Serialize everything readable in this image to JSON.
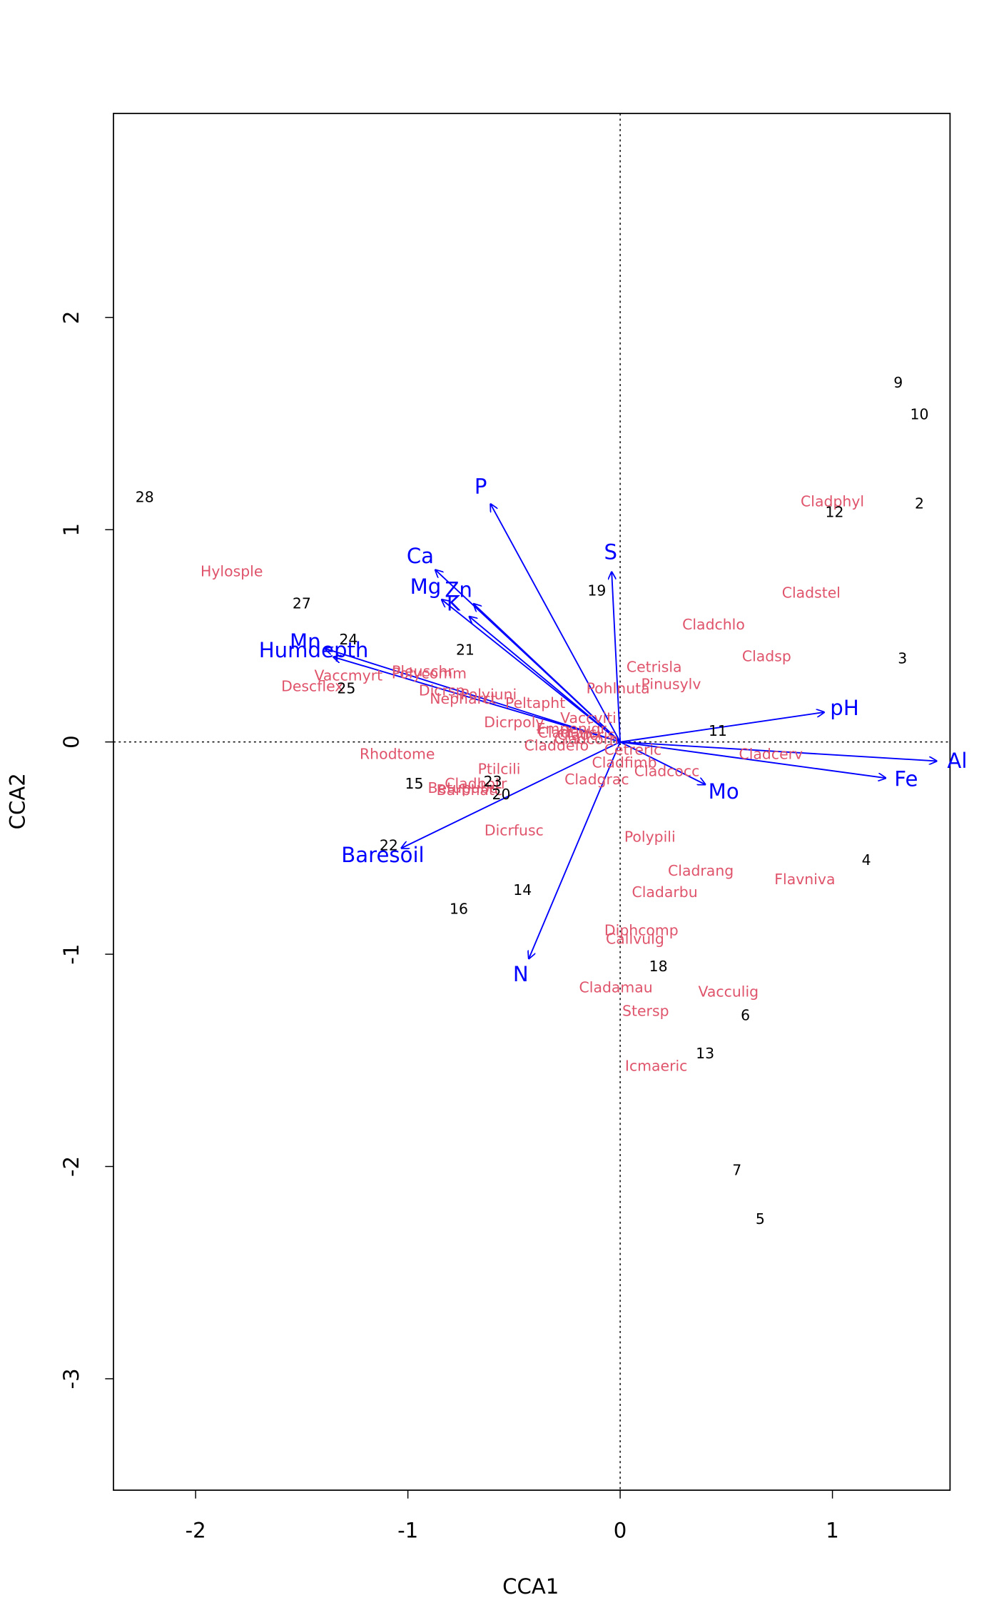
{
  "chart_data": {
    "type": "biplot",
    "x_label": "CCA1",
    "y_label": "CCA2",
    "xlim": [
      -2.387,
      1.554
    ],
    "ylim": [
      -3.525,
      2.961
    ],
    "xticks": [
      -2,
      -1,
      0,
      1
    ],
    "yticks": [
      -3,
      -2,
      -1,
      0,
      1,
      2
    ],
    "sites": {
      "color": "#000000",
      "labels": [
        "9",
        "10",
        "2",
        "12",
        "3",
        "11",
        "4",
        "18",
        "6",
        "13",
        "7",
        "5",
        "19",
        "21",
        "24",
        "27",
        "25",
        "28",
        "15",
        "23",
        "20",
        "22",
        "14",
        "16"
      ],
      "x": [
        1.31,
        1.41,
        1.41,
        1.01,
        1.33,
        0.46,
        1.16,
        0.18,
        0.59,
        0.4,
        0.55,
        0.66,
        -0.11,
        -0.73,
        -1.28,
        -1.5,
        -1.29,
        -2.24,
        -0.97,
        -0.6,
        -0.56,
        -1.09,
        -0.46,
        -0.76
      ],
      "y": [
        1.69,
        1.54,
        1.12,
        1.08,
        0.39,
        0.05,
        -0.56,
        -1.06,
        -1.29,
        -1.47,
        -2.02,
        -2.25,
        0.71,
        0.43,
        0.48,
        0.65,
        0.25,
        1.15,
        -0.2,
        -0.19,
        -0.25,
        -0.49,
        -0.7,
        -0.79
      ]
    },
    "species": {
      "color": "#DF536B",
      "labels": [
        "Hylosple",
        "Cladphyl",
        "Cladstel",
        "Cladchlo",
        "Cladsp",
        "Cetrisla",
        "Pinusylv",
        "Pohlnuta",
        "Vaccmyrt",
        "Pleuschr",
        "Polycomm",
        "Descflex",
        "Dicrsp",
        "Polyjuni",
        "Nepharct",
        "Peltapht",
        "Dicrpoly",
        "Vaccviti",
        "Empenigr",
        "Cladunci",
        "Cladcris",
        "Claddefo",
        "Cladcorn",
        "Cetreric",
        "Cladcerv",
        "Rhodtome",
        "Ptilcili",
        "Cladfimb",
        "Cladcocc",
        "Cladgrac",
        "Cladbotr",
        "Barbhatc",
        "Betupube",
        "Dicrfusc",
        "Polypili",
        "Cladrang",
        "Flavniva",
        "Cladarbu",
        "Diphcomp",
        "Callvulg",
        "Cladamau",
        "Vacculig",
        "Stersp",
        "Icmaeric"
      ],
      "x": [
        -1.83,
        1.0,
        0.9,
        0.44,
        0.69,
        0.16,
        0.24,
        -0.01,
        -1.28,
        -0.93,
        -0.9,
        -1.45,
        -0.84,
        -0.62,
        -0.74,
        -0.4,
        -0.5,
        -0.15,
        -0.23,
        -0.24,
        -0.16,
        -0.3,
        -0.16,
        0.06,
        0.71,
        -1.05,
        -0.57,
        0.02,
        0.22,
        -0.11,
        -0.68,
        -0.71,
        -0.74,
        -0.5,
        0.14,
        0.38,
        0.87,
        0.21,
        0.1,
        0.07,
        -0.02,
        0.51,
        0.12,
        0.17
      ],
      "y": [
        0.8,
        1.13,
        0.7,
        0.55,
        0.4,
        0.35,
        0.27,
        0.25,
        0.31,
        0.33,
        0.32,
        0.26,
        0.24,
        0.22,
        0.2,
        0.18,
        0.09,
        0.11,
        0.06,
        0.04,
        0.03,
        -0.02,
        0.01,
        -0.04,
        -0.06,
        -0.06,
        -0.13,
        -0.1,
        -0.14,
        -0.18,
        -0.2,
        -0.23,
        -0.22,
        -0.42,
        -0.45,
        -0.61,
        -0.65,
        -0.71,
        -0.89,
        -0.93,
        -1.16,
        -1.18,
        -1.27,
        -1.53
      ]
    },
    "biplot": {
      "color": "#0000FF",
      "labels": [
        "P",
        "Ca",
        "Mg",
        "Zn",
        "K",
        "S",
        "Mn",
        "Humdepth",
        "pH",
        "Al",
        "Fe",
        "Mo",
        "Baresoil",
        "N"
      ],
      "x": [
        -0.61,
        -0.87,
        -0.84,
        -0.69,
        -0.71,
        -0.04,
        -1.39,
        -1.35,
        0.96,
        1.49,
        1.25,
        0.4,
        -1.03,
        -0.43
      ],
      "y": [
        1.12,
        0.81,
        0.67,
        0.65,
        0.59,
        0.8,
        0.44,
        0.4,
        0.14,
        -0.09,
        -0.17,
        -0.2,
        -0.5,
        -1.02
      ]
    }
  }
}
